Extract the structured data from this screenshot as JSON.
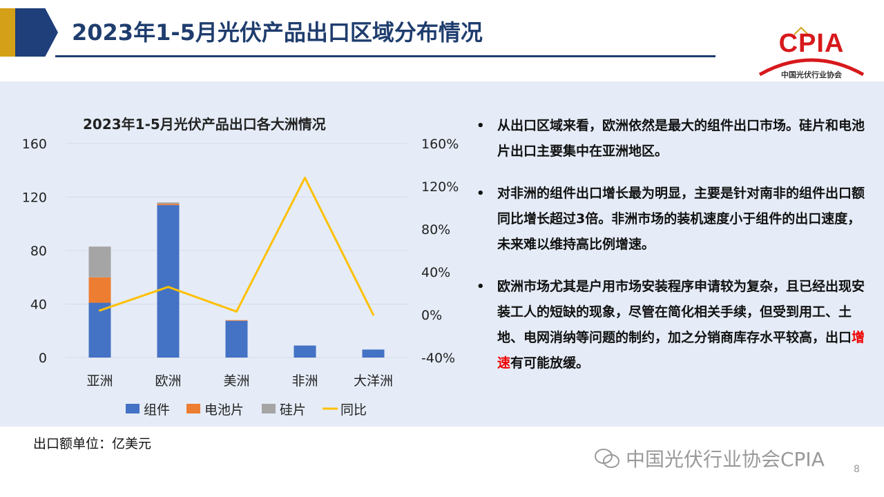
{
  "header": {
    "title": "2023年1-5月光伏产品出口区域分布情况"
  },
  "logo": {
    "text": "CPIA",
    "subtitle": "中国光伏行业协会"
  },
  "chart_data": {
    "type": "bar",
    "title": "2023年1-5月光伏产品出口各大洲情况",
    "categories": [
      "亚洲",
      "欧洲",
      "美洲",
      "非洲",
      "大洋洲"
    ],
    "series": [
      {
        "name": "组件",
        "type": "bar",
        "stack": "total",
        "color": "#4472c4",
        "values": [
          41,
          114,
          27.5,
          9,
          6
        ]
      },
      {
        "name": "电池片",
        "type": "bar",
        "stack": "total",
        "color": "#ed7d31",
        "values": [
          19,
          1,
          0.5,
          0,
          0
        ]
      },
      {
        "name": "硅片",
        "type": "bar",
        "stack": "total",
        "color": "#a5a5a5",
        "values": [
          23,
          1,
          0,
          0,
          0
        ]
      },
      {
        "name": "同比",
        "type": "line",
        "axis": "right",
        "color": "#ffc000",
        "values": [
          4,
          26,
          3,
          128,
          0
        ]
      }
    ],
    "y_left": {
      "min": 0,
      "max": 160,
      "ticks": [
        "0",
        "40",
        "80",
        "120",
        "160"
      ]
    },
    "y_right": {
      "min": -40,
      "max": 160,
      "ticks": [
        "-40%",
        "0%",
        "40%",
        "80%",
        "120%",
        "160%"
      ]
    },
    "legend": {
      "placement": "bottom",
      "items": [
        "组件",
        "电池片",
        "硅片",
        "同比"
      ]
    },
    "grid": true
  },
  "bullets": [
    {
      "text": "从出口区域来看，欧洲依然是最大的组件出口市场。硅片和电池片出口主要集中在亚洲地区。"
    },
    {
      "text": "对非洲的组件出口增长最为明显，主要是针对南非的组件出口额同比增长超过3倍。非洲市场的装机速度小于组件的出口速度，未来难以维持高比例增速。"
    },
    {
      "text_before": "欧洲市场尤其是户用市场安装程序申请较为复杂，且已经出现安装工人的短缺的现象，尽管在简化相关手续，但受到用工、土地、电网消纳等问题的制约，加之分销商库存水平较高，出口",
      "highlight": "增速",
      "text_after": "有可能放缓。"
    }
  ],
  "footer": {
    "unit_note": "出口额单位：亿美元",
    "watermark": "中国光伏行业协会CPIA",
    "page_number": "8"
  },
  "colors": {
    "accent_blue": "#1f3d6e",
    "accent_gold": "#d4a017",
    "highlight_red": "#e00000",
    "panel_bg": "#e5ecf7"
  }
}
